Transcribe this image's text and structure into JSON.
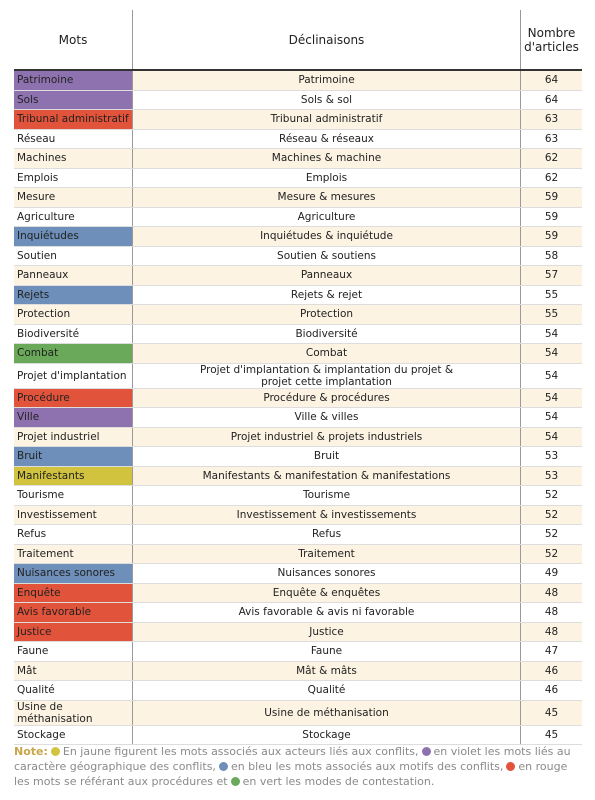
{
  "table": {
    "headers": [
      "Mots",
      "Déclinaisons",
      "Nombre d'articles"
    ],
    "rows": [
      {
        "mot": "Patrimoine",
        "declinaisons": "Patrimoine",
        "articles": 64,
        "color": "#8e72b0"
      },
      {
        "mot": "Sols",
        "declinaisons": "Sols & sol",
        "articles": 64,
        "color": "#8e72b0"
      },
      {
        "mot": "Tribunal administratif",
        "declinaisons": "Tribunal administratif",
        "articles": 63,
        "color": "#e2533b"
      },
      {
        "mot": "Réseau",
        "declinaisons": "Réseau & réseaux",
        "articles": 63,
        "color": null
      },
      {
        "mot": "Machines",
        "declinaisons": "Machines & machine",
        "articles": 62,
        "color": null
      },
      {
        "mot": "Emplois",
        "declinaisons": "Emplois",
        "articles": 62,
        "color": null
      },
      {
        "mot": "Mesure",
        "declinaisons": "Mesure & mesures",
        "articles": 59,
        "color": null
      },
      {
        "mot": "Agriculture",
        "declinaisons": "Agriculture",
        "articles": 59,
        "color": null
      },
      {
        "mot": "Inquiétudes",
        "declinaisons": "Inquiétudes & inquiétude",
        "articles": 59,
        "color": "#6d8fb9"
      },
      {
        "mot": "Soutien",
        "declinaisons": "Soutien & soutiens",
        "articles": 58,
        "color": null
      },
      {
        "mot": "Panneaux",
        "declinaisons": "Panneaux",
        "articles": 57,
        "color": null
      },
      {
        "mot": "Rejets",
        "declinaisons": "Rejets & rejet",
        "articles": 55,
        "color": "#6d8fb9"
      },
      {
        "mot": "Protection",
        "declinaisons": "Protection",
        "articles": 55,
        "color": null
      },
      {
        "mot": "Biodiversité",
        "declinaisons": "Biodiversité",
        "articles": 54,
        "color": null
      },
      {
        "mot": "Combat",
        "declinaisons": "Combat",
        "articles": 54,
        "color": "#6aa95a"
      },
      {
        "mot": "Projet d'implantation",
        "declinaisons": "Projet d'implantation & implantation du projet & projet cette implantation",
        "articles": 54,
        "color": null
      },
      {
        "mot": "Procédure",
        "declinaisons": "Procédure & procédures",
        "articles": 54,
        "color": "#e2533b"
      },
      {
        "mot": "Ville",
        "declinaisons": "Ville & villes",
        "articles": 54,
        "color": "#8e72b0"
      },
      {
        "mot": "Projet industriel",
        "declinaisons": "Projet industriel & projets industriels",
        "articles": 54,
        "color": null
      },
      {
        "mot": "Bruit",
        "declinaisons": "Bruit",
        "articles": 53,
        "color": "#6d8fb9"
      },
      {
        "mot": "Manifestants",
        "declinaisons": "Manifestants & manifestation & manifestations",
        "articles": 53,
        "color": "#d2c33e"
      },
      {
        "mot": "Tourisme",
        "declinaisons": "Tourisme",
        "articles": 52,
        "color": null
      },
      {
        "mot": "Investissement",
        "declinaisons": "Investissement & investissements",
        "articles": 52,
        "color": null
      },
      {
        "mot": "Refus",
        "declinaisons": "Refus",
        "articles": 52,
        "color": null
      },
      {
        "mot": "Traitement",
        "declinaisons": "Traitement",
        "articles": 52,
        "color": null
      },
      {
        "mot": "Nuisances sonores",
        "declinaisons": "Nuisances sonores",
        "articles": 49,
        "color": "#6d8fb9"
      },
      {
        "mot": "Enquête",
        "declinaisons": "Enquête & enquêtes",
        "articles": 48,
        "color": "#e2533b"
      },
      {
        "mot": "Avis favorable",
        "declinaisons": "Avis favorable & avis ni favorable",
        "articles": 48,
        "color": "#e2533b"
      },
      {
        "mot": "Justice",
        "declinaisons": "Justice",
        "articles": 48,
        "color": "#e2533b"
      },
      {
        "mot": "Faune",
        "declinaisons": "Faune",
        "articles": 47,
        "color": null
      },
      {
        "mot": "Mât",
        "declinaisons": "Mât & mâts",
        "articles": 46,
        "color": null
      },
      {
        "mot": "Qualité",
        "declinaisons": "Qualité",
        "articles": 46,
        "color": null
      },
      {
        "mot": "Usine de méthanisation",
        "declinaisons": "Usine de méthanisation",
        "articles": 45,
        "color": null
      },
      {
        "mot": "Stockage",
        "declinaisons": "Stockage",
        "articles": 45,
        "color": null
      }
    ]
  },
  "note": {
    "label": "Note:",
    "parts": [
      {
        "dot": "#d2c33e",
        "text": "En jaune figurent les mots associés aux acteurs liés aux conflits,"
      },
      {
        "dot": "#8e72b0",
        "text": "en violet les mots liés au caractère géographique des conflits,"
      },
      {
        "dot": "#6d8fb9",
        "text": "en bleu les mots associés aux motifs des conflits,"
      },
      {
        "dot": "#e2533b",
        "text": "en rouge les mots se référant aux procédures et"
      },
      {
        "dot": "#6aa95a",
        "text": "en vert les modes de contestation."
      }
    ]
  }
}
